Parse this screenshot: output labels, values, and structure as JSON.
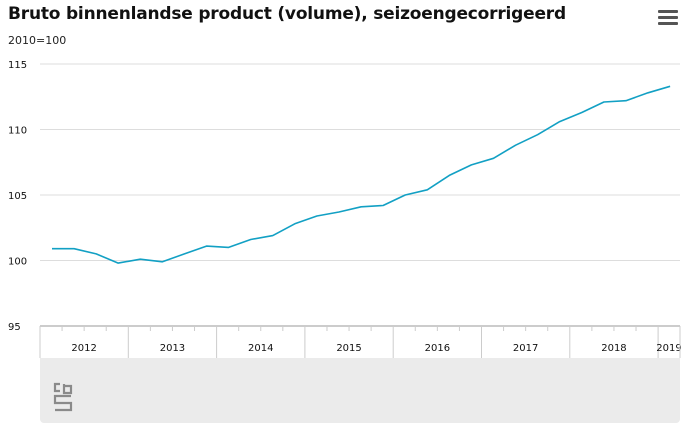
{
  "header": {
    "title": "Bruto binnenlandse product (volume), seizoengecorrigeerd",
    "subtitle": "2010=100"
  },
  "menu": {
    "icon": "hamburger-menu-icon"
  },
  "footer": {
    "logo_icon": "cbs-logo-icon"
  },
  "colors": {
    "line": "#12a0c4",
    "grid": "#dddddd",
    "axis": "#999999",
    "footer_bg": "#ebebeb"
  },
  "chart_data": {
    "type": "line",
    "title": "Bruto binnenlandse product (volume), seizoengecorrigeerd",
    "subtitle": "2010=100",
    "xlabel": "",
    "ylabel": "",
    "ylim": [
      95,
      115
    ],
    "yticks": [
      95,
      100,
      105,
      110,
      115
    ],
    "grid": true,
    "categories": [
      "2012",
      "2013",
      "2014",
      "2015",
      "2016",
      "2017",
      "2018",
      "2019"
    ],
    "x": [
      "2012 Q1",
      "2012 Q2",
      "2012 Q3",
      "2012 Q4",
      "2013 Q1",
      "2013 Q2",
      "2013 Q3",
      "2013 Q4",
      "2014 Q1",
      "2014 Q2",
      "2014 Q3",
      "2014 Q4",
      "2015 Q1",
      "2015 Q2",
      "2015 Q3",
      "2015 Q4",
      "2016 Q1",
      "2016 Q2",
      "2016 Q3",
      "2016 Q4",
      "2017 Q1",
      "2017 Q2",
      "2017 Q3",
      "2017 Q4",
      "2018 Q1",
      "2018 Q2",
      "2018 Q3",
      "2018 Q4",
      "2019 Q1"
    ],
    "series": [
      {
        "values": [
          100.9,
          100.9,
          100.5,
          99.8,
          100.1,
          99.9,
          100.5,
          101.1,
          101.0,
          101.6,
          101.9,
          102.8,
          103.4,
          103.7,
          104.1,
          104.2,
          105.0,
          105.4,
          106.5,
          107.3,
          107.8,
          108.8,
          109.6,
          110.6,
          111.3,
          112.1,
          112.2,
          112.8,
          113.3
        ]
      }
    ]
  }
}
